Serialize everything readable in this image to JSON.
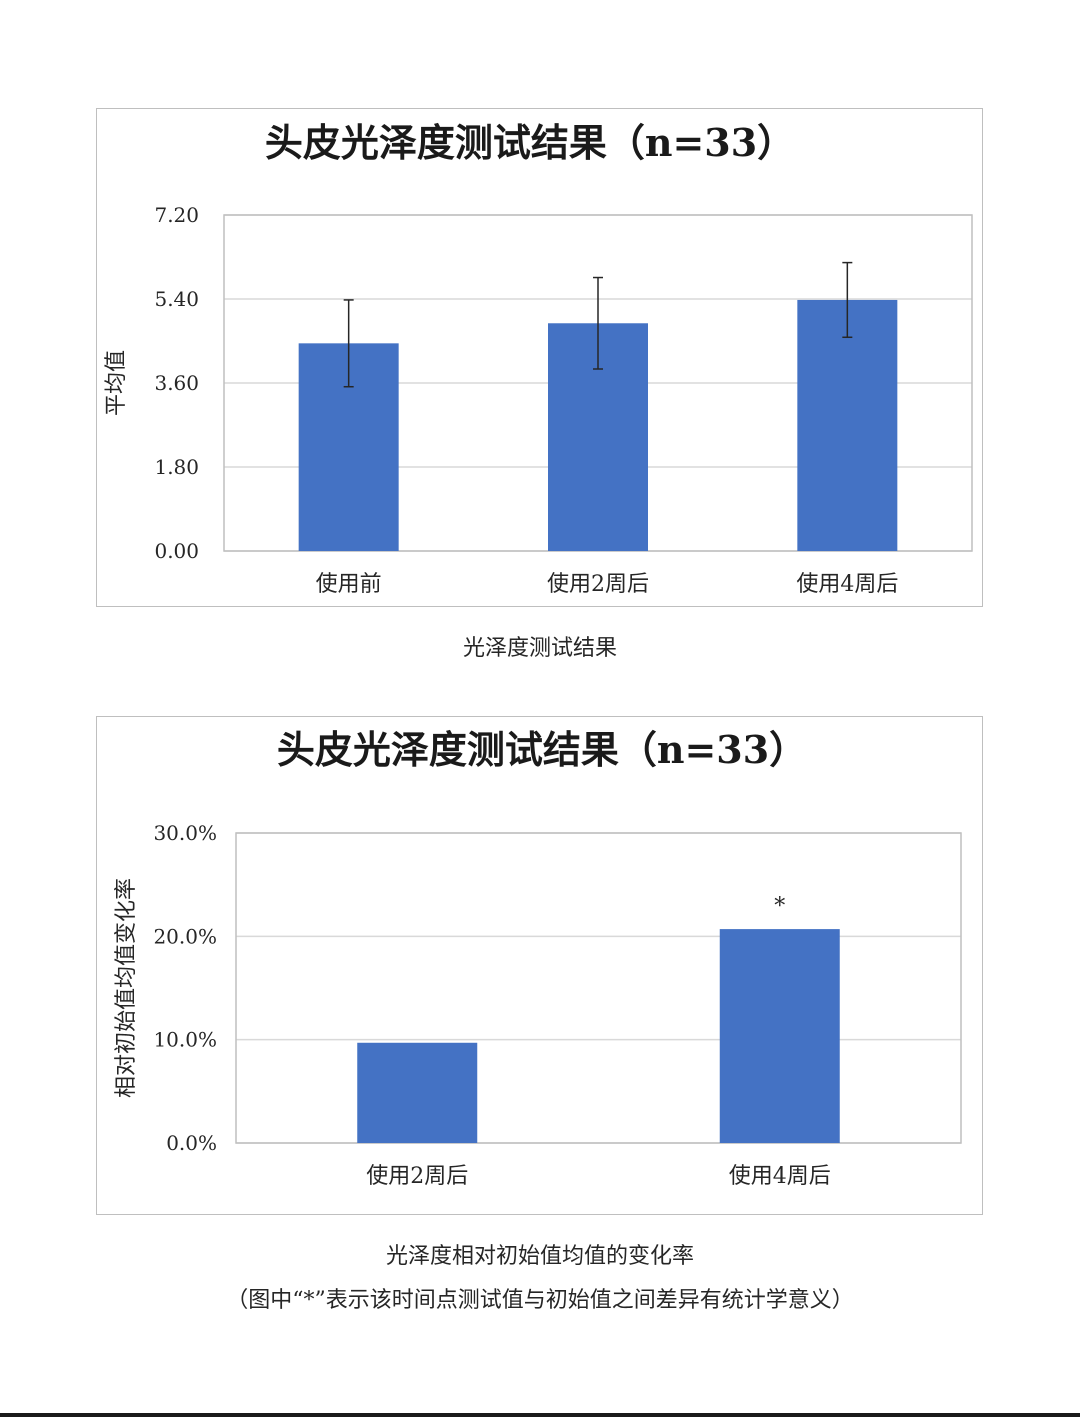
{
  "chart_data": [
    {
      "type": "bar",
      "title": "头皮光泽度测试结果（n=33）",
      "ylabel": "平均值",
      "xlabel": "",
      "categories": [
        "使用前",
        "使用2周后",
        "使用4周后"
      ],
      "values": [
        4.45,
        4.88,
        5.38
      ],
      "error_bars": [
        0.93,
        0.98,
        0.8
      ],
      "ylim": [
        0,
        7.2
      ],
      "yticks": [
        "0.00",
        "1.80",
        "3.60",
        "5.40",
        "7.20"
      ],
      "ytick_values": [
        0,
        1.8,
        3.6,
        5.4,
        7.2
      ],
      "grid": true,
      "color": "#4472C4"
    },
    {
      "type": "bar",
      "title": "头皮光泽度测试结果（n=33）",
      "ylabel": "相对初始值均值变化率",
      "xlabel": "",
      "categories": [
        "使用2周后",
        "使用4周后"
      ],
      "values": [
        9.7,
        20.7
      ],
      "value_unit": "%",
      "annotations": [
        "",
        "*"
      ],
      "ylim": [
        0,
        30
      ],
      "yticks": [
        "0.0%",
        "10.0%",
        "20.0%",
        "30.0%"
      ],
      "ytick_values": [
        0,
        10,
        20,
        30
      ],
      "grid": true,
      "color": "#4472C4"
    }
  ],
  "captions": {
    "chart1": "光泽度测试结果",
    "chart2": "光泽度相对初始值均值的变化率",
    "chart2_note": "（图中“*”表示该时间点测试值与初始值之间差异有统计学意义）"
  }
}
